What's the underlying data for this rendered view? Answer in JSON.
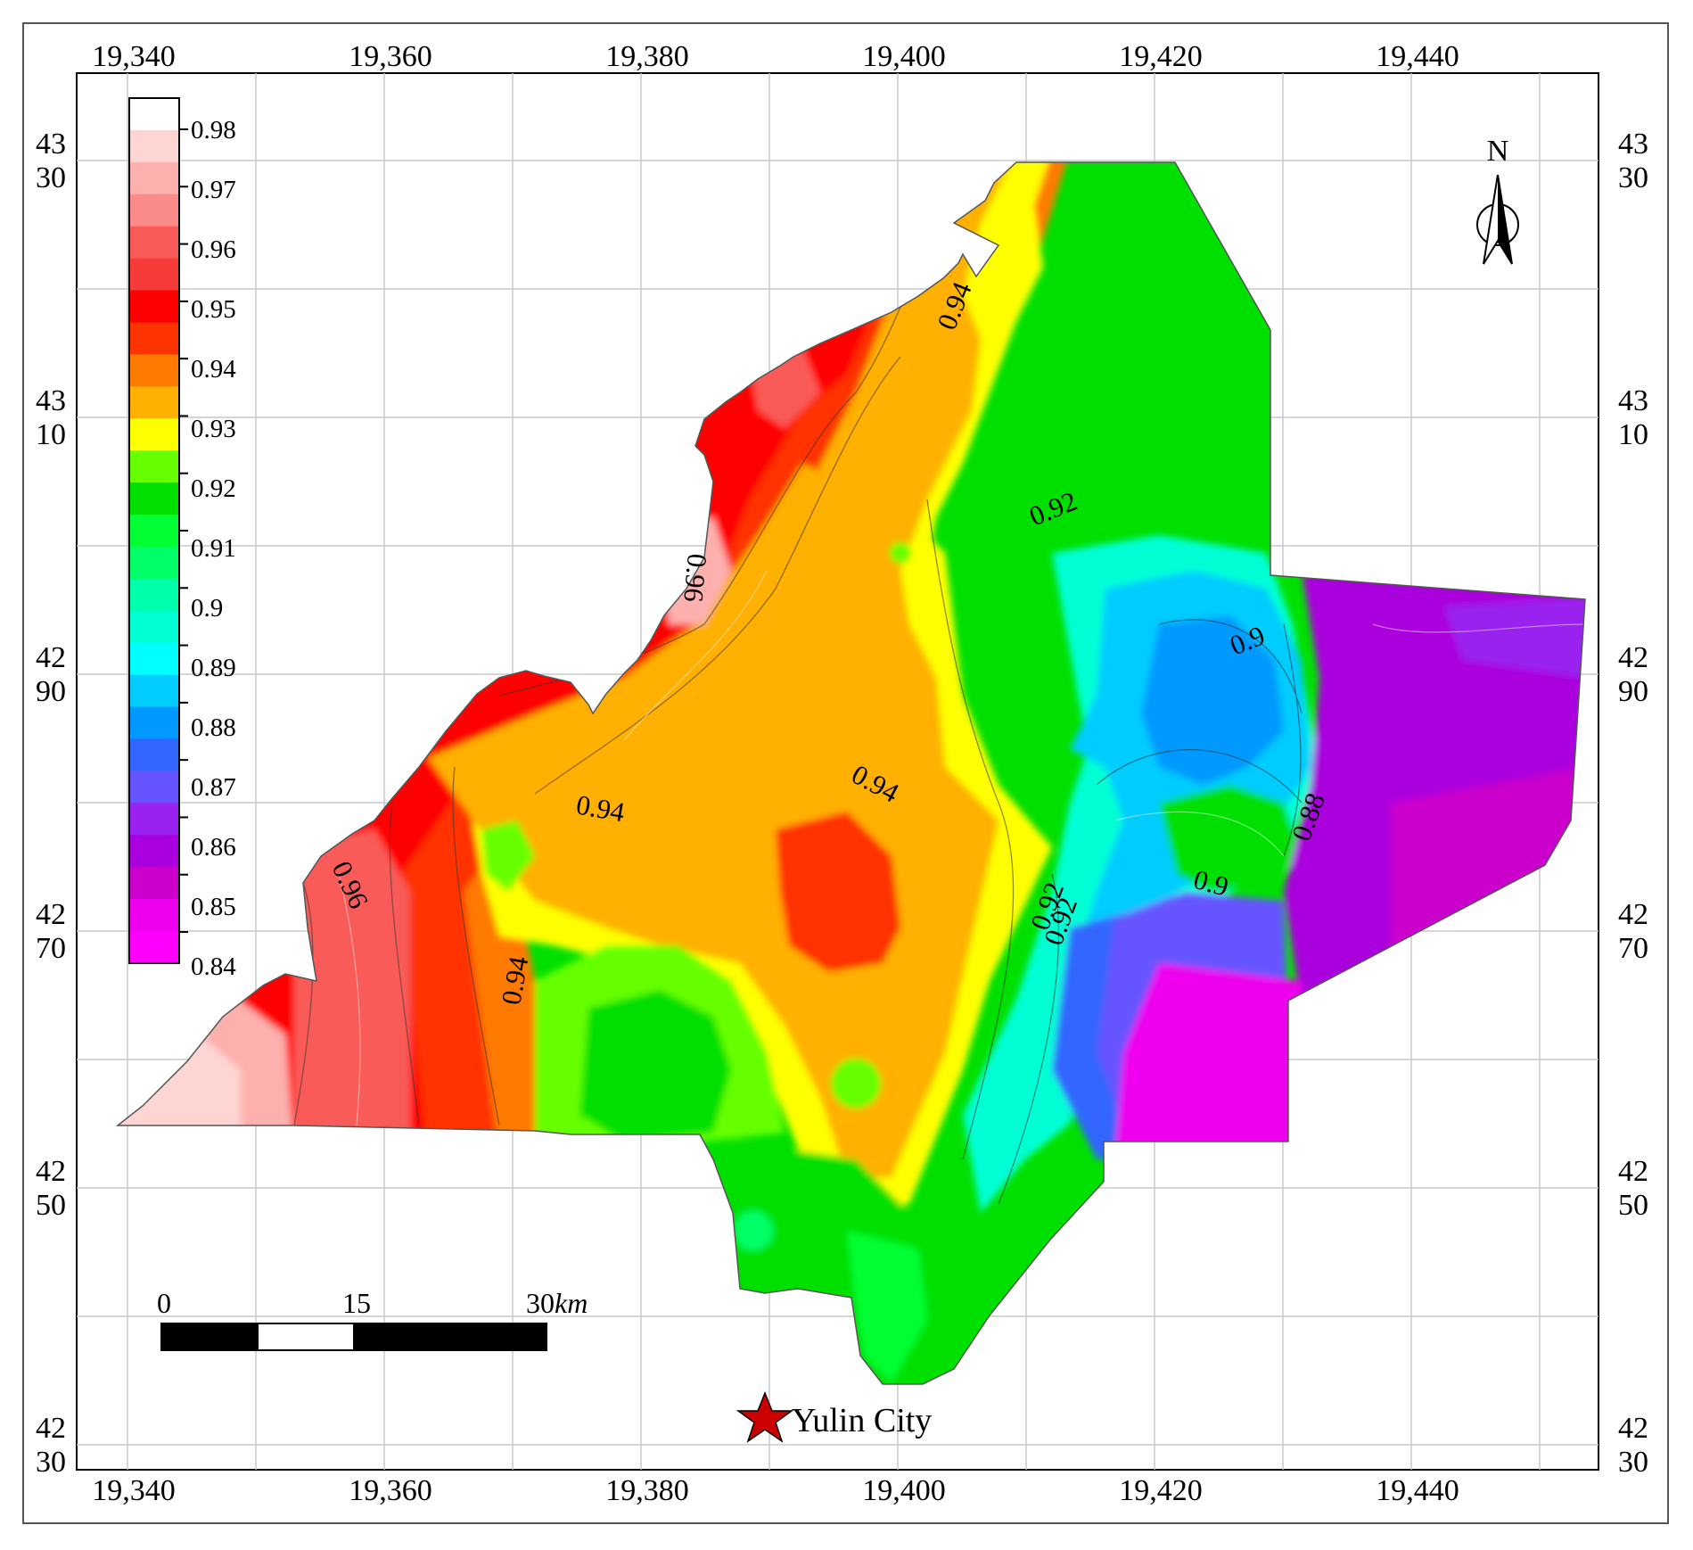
{
  "map": {
    "x_ticks": [
      "19,340",
      "19,360",
      "19,380",
      "19,400",
      "19,420",
      "19,440"
    ],
    "y_ticks": [
      {
        "top": "43",
        "bottom": "30"
      },
      {
        "top": "43",
        "bottom": "10"
      },
      {
        "top": "42",
        "bottom": "90"
      },
      {
        "top": "42",
        "bottom": "70"
      },
      {
        "top": "42",
        "bottom": "50"
      },
      {
        "top": "42",
        "bottom": "30"
      }
    ],
    "legend": {
      "levels": [
        "0.98",
        "0.97",
        "0.96",
        "0.95",
        "0.94",
        "0.93",
        "0.92",
        "0.91",
        "0.9",
        "0.89",
        "0.88",
        "0.87",
        "0.86",
        "0.85",
        "0.84"
      ],
      "colors": [
        "#ffffff",
        "#fdd6d4",
        "#fdb0ae",
        "#fb8b89",
        "#f95b59",
        "#f73b3b",
        "#ff0000",
        "#ff3300",
        "#ff7a00",
        "#ffb000",
        "#ffff00",
        "#66ff00",
        "#00e000",
        "#00ff33",
        "#00ff66",
        "#00ffaa",
        "#00ffd5",
        "#00ffff",
        "#00ccff",
        "#0099ff",
        "#3366ff",
        "#6655ff",
        "#9922ee",
        "#aa00dd",
        "#cc00cc",
        "#ee00ee",
        "#ff00ff"
      ]
    },
    "contour_labels": [
      "0.94",
      "0.96",
      "0.94",
      "0.94",
      "0.96",
      "0.94",
      "0.92",
      "0.9",
      "0.9",
      "0.88",
      "0.92",
      "0.92"
    ],
    "north_label": "N",
    "scale_bar": {
      "labels": [
        "0",
        "15",
        "30"
      ],
      "unit": "km"
    },
    "city": {
      "name": "Yulin City"
    }
  },
  "colors": {
    "frame": "#000000",
    "grid": "#c8c8c8",
    "city_star": "#cc0000"
  }
}
